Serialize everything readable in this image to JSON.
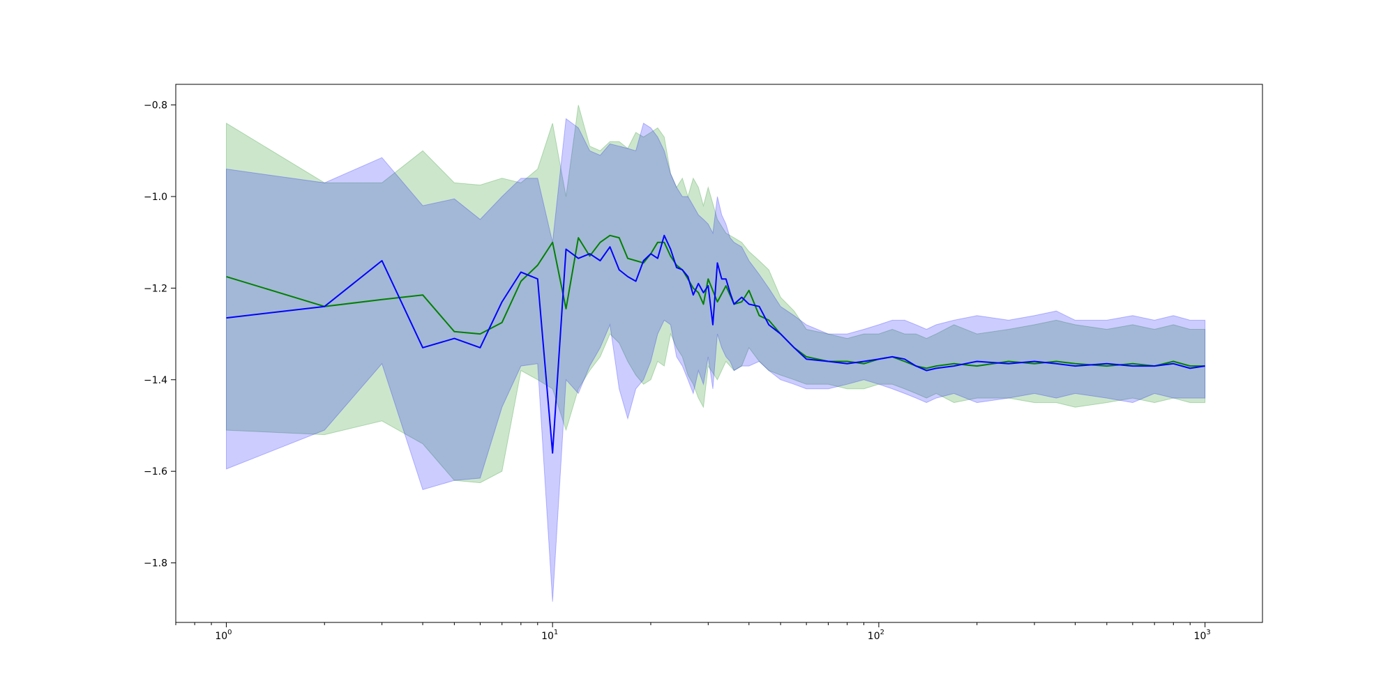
{
  "chart_data": {
    "type": "line",
    "title": "",
    "xlabel": "",
    "ylabel": "",
    "x_scale": "log",
    "xlim": [
      0.7,
      1500
    ],
    "ylim": [
      -1.93,
      -0.755
    ],
    "grid": false,
    "legend": "none",
    "x_ticks": [
      {
        "value": 1,
        "base": "10",
        "exp": "0"
      },
      {
        "value": 10,
        "base": "10",
        "exp": "1"
      },
      {
        "value": 100,
        "base": "10",
        "exp": "2"
      },
      {
        "value": 1000,
        "base": "10",
        "exp": "3"
      }
    ],
    "y_ticks": [
      {
        "value": -0.8,
        "label": "−0.8"
      },
      {
        "value": -1.0,
        "label": "−1.0"
      },
      {
        "value": -1.2,
        "label": "−1.2"
      },
      {
        "value": -1.4,
        "label": "−1.4"
      },
      {
        "value": -1.6,
        "label": "−1.6"
      },
      {
        "value": -1.8,
        "label": "−1.8"
      }
    ],
    "series": [
      {
        "color": "#008000",
        "band_color": "#008000",
        "band_opacity": 0.2,
        "x": [
          1,
          2,
          3,
          4,
          5,
          6,
          7,
          8,
          9,
          10,
          11,
          12,
          13,
          14,
          15,
          16,
          17,
          18,
          19,
          20,
          21,
          22,
          23,
          24,
          25,
          26,
          27,
          28,
          29,
          30,
          32,
          34,
          36,
          38,
          40,
          43,
          46,
          50,
          55,
          60,
          70,
          80,
          90,
          100,
          110,
          120,
          130,
          140,
          150,
          170,
          200,
          250,
          300,
          350,
          400,
          500,
          600,
          700,
          800,
          900,
          1000
        ],
        "y": [
          -1.175,
          -1.24,
          -1.225,
          -1.215,
          -1.295,
          -1.3,
          -1.275,
          -1.185,
          -1.15,
          -1.1,
          -1.245,
          -1.09,
          -1.13,
          -1.1,
          -1.085,
          -1.09,
          -1.135,
          -1.14,
          -1.145,
          -1.125,
          -1.1,
          -1.1,
          -1.13,
          -1.15,
          -1.16,
          -1.18,
          -1.2,
          -1.21,
          -1.235,
          -1.18,
          -1.23,
          -1.195,
          -1.235,
          -1.23,
          -1.205,
          -1.26,
          -1.27,
          -1.3,
          -1.33,
          -1.35,
          -1.36,
          -1.36,
          -1.365,
          -1.355,
          -1.35,
          -1.36,
          -1.37,
          -1.375,
          -1.37,
          -1.365,
          -1.37,
          -1.36,
          -1.365,
          -1.36,
          -1.365,
          -1.37,
          -1.365,
          -1.37,
          -1.36,
          -1.37,
          -1.37
        ],
        "upper": [
          -0.84,
          -0.97,
          -0.97,
          -0.9,
          -0.97,
          -0.975,
          -0.96,
          -0.97,
          -0.94,
          -0.84,
          -1.0,
          -0.8,
          -0.89,
          -0.9,
          -0.88,
          -0.88,
          -0.895,
          -0.86,
          -0.87,
          -0.86,
          -0.85,
          -0.87,
          -0.95,
          -0.98,
          -0.96,
          -1.0,
          -0.96,
          -0.98,
          -1.02,
          -0.98,
          -1.05,
          -1.08,
          -1.09,
          -1.1,
          -1.12,
          -1.14,
          -1.16,
          -1.22,
          -1.25,
          -1.29,
          -1.3,
          -1.31,
          -1.3,
          -1.3,
          -1.29,
          -1.3,
          -1.3,
          -1.31,
          -1.3,
          -1.28,
          -1.3,
          -1.29,
          -1.28,
          -1.27,
          -1.28,
          -1.29,
          -1.28,
          -1.29,
          -1.28,
          -1.29,
          -1.29
        ],
        "lower": [
          -1.51,
          -1.52,
          -1.49,
          -1.54,
          -1.62,
          -1.625,
          -1.6,
          -1.38,
          -1.4,
          -1.42,
          -1.51,
          -1.42,
          -1.38,
          -1.35,
          -1.3,
          -1.32,
          -1.36,
          -1.39,
          -1.41,
          -1.4,
          -1.36,
          -1.37,
          -1.3,
          -1.33,
          -1.35,
          -1.39,
          -1.41,
          -1.44,
          -1.46,
          -1.37,
          -1.4,
          -1.36,
          -1.38,
          -1.37,
          -1.33,
          -1.36,
          -1.38,
          -1.39,
          -1.4,
          -1.41,
          -1.41,
          -1.42,
          -1.42,
          -1.41,
          -1.41,
          -1.42,
          -1.43,
          -1.44,
          -1.43,
          -1.45,
          -1.44,
          -1.44,
          -1.45,
          -1.45,
          -1.46,
          -1.45,
          -1.44,
          -1.45,
          -1.44,
          -1.45,
          -1.45
        ]
      },
      {
        "color": "#0000ff",
        "band_color": "#0000ff",
        "band_opacity": 0.2,
        "x": [
          1,
          2,
          3,
          4,
          5,
          6,
          7,
          8,
          9,
          10,
          11,
          12,
          13,
          14,
          15,
          16,
          17,
          18,
          19,
          20,
          21,
          22,
          23,
          24,
          25,
          26,
          27,
          28,
          29,
          30,
          31,
          32,
          33,
          34,
          35,
          36,
          38,
          40,
          43,
          46,
          50,
          55,
          60,
          70,
          80,
          90,
          100,
          110,
          120,
          130,
          140,
          150,
          170,
          200,
          250,
          300,
          350,
          400,
          500,
          600,
          700,
          800,
          900,
          1000
        ],
        "y": [
          -1.265,
          -1.24,
          -1.14,
          -1.33,
          -1.31,
          -1.33,
          -1.23,
          -1.165,
          -1.18,
          -1.56,
          -1.115,
          -1.135,
          -1.125,
          -1.14,
          -1.11,
          -1.16,
          -1.175,
          -1.185,
          -1.14,
          -1.125,
          -1.135,
          -1.085,
          -1.115,
          -1.155,
          -1.16,
          -1.175,
          -1.215,
          -1.19,
          -1.21,
          -1.195,
          -1.28,
          -1.145,
          -1.18,
          -1.18,
          -1.21,
          -1.235,
          -1.22,
          -1.235,
          -1.24,
          -1.28,
          -1.3,
          -1.33,
          -1.355,
          -1.36,
          -1.365,
          -1.36,
          -1.355,
          -1.35,
          -1.355,
          -1.37,
          -1.38,
          -1.375,
          -1.37,
          -1.36,
          -1.365,
          -1.36,
          -1.365,
          -1.37,
          -1.365,
          -1.37,
          -1.37,
          -1.365,
          -1.375,
          -1.37
        ],
        "upper": [
          -0.94,
          -0.97,
          -0.915,
          -1.02,
          -1.005,
          -1.05,
          -1.0,
          -0.96,
          -0.96,
          -1.1,
          -0.83,
          -0.85,
          -0.9,
          -0.91,
          -0.885,
          -0.89,
          -0.895,
          -0.9,
          -0.84,
          -0.85,
          -0.87,
          -0.9,
          -0.95,
          -0.98,
          -1.0,
          -1.0,
          -1.02,
          -1.04,
          -1.05,
          -1.06,
          -1.08,
          -1.0,
          -1.04,
          -1.06,
          -1.09,
          -1.1,
          -1.11,
          -1.14,
          -1.17,
          -1.2,
          -1.24,
          -1.26,
          -1.28,
          -1.3,
          -1.3,
          -1.29,
          -1.28,
          -1.27,
          -1.27,
          -1.28,
          -1.29,
          -1.28,
          -1.27,
          -1.26,
          -1.27,
          -1.26,
          -1.25,
          -1.27,
          -1.27,
          -1.26,
          -1.27,
          -1.26,
          -1.27,
          -1.27
        ],
        "lower": [
          -1.595,
          -1.51,
          -1.365,
          -1.64,
          -1.62,
          -1.615,
          -1.46,
          -1.37,
          -1.365,
          -1.885,
          -1.4,
          -1.43,
          -1.37,
          -1.33,
          -1.28,
          -1.42,
          -1.485,
          -1.42,
          -1.4,
          -1.36,
          -1.3,
          -1.27,
          -1.28,
          -1.35,
          -1.37,
          -1.4,
          -1.43,
          -1.38,
          -1.41,
          -1.35,
          -1.42,
          -1.3,
          -1.33,
          -1.35,
          -1.36,
          -1.38,
          -1.37,
          -1.37,
          -1.36,
          -1.38,
          -1.4,
          -1.41,
          -1.42,
          -1.42,
          -1.41,
          -1.4,
          -1.41,
          -1.42,
          -1.43,
          -1.44,
          -1.45,
          -1.44,
          -1.43,
          -1.45,
          -1.44,
          -1.43,
          -1.44,
          -1.43,
          -1.44,
          -1.45,
          -1.43,
          -1.44,
          -1.44,
          -1.44
        ]
      }
    ]
  }
}
